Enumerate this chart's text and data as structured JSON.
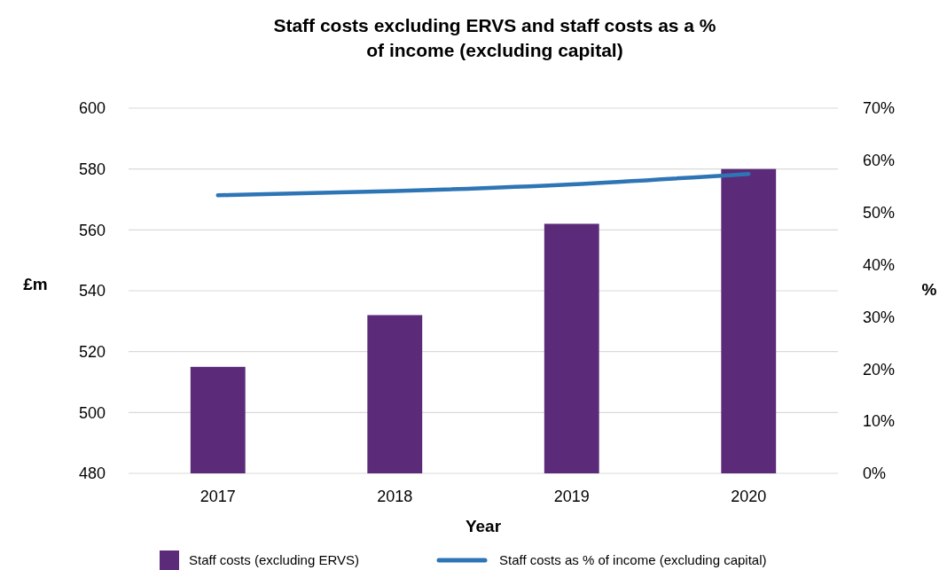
{
  "chart_data": {
    "type": "bar",
    "title": "Staff costs excluding ERVS and staff costs as a % of income (excluding capital)",
    "xlabel": "Year",
    "ylabel": "£m",
    "y2label": "%",
    "categories": [
      "2017",
      "2018",
      "2019",
      "2020"
    ],
    "series": [
      {
        "name": "Staff costs (excluding ERVS)",
        "color": "#5b2a78",
        "values": [
          515,
          532,
          562,
          580
        ]
      },
      {
        "name": "Staff costs as % of income (excluding capital)",
        "type": "line",
        "axis": "y2",
        "color": "#2e75b6",
        "values": [
          53.3,
          54.1,
          55.4,
          57.4
        ]
      }
    ],
    "ylim": [
      480,
      600
    ],
    "yticks": [
      480,
      500,
      520,
      540,
      560,
      580,
      600
    ],
    "y2lim": [
      0,
      70
    ],
    "y2ticks": [
      {
        "value": 0,
        "label": "0%"
      },
      {
        "value": 10,
        "label": "10%"
      },
      {
        "value": 20,
        "label": "20%"
      },
      {
        "value": 30,
        "label": "30%"
      },
      {
        "value": 40,
        "label": "40%"
      },
      {
        "value": 50,
        "label": "50%"
      },
      {
        "value": 60,
        "label": "60%"
      },
      {
        "value": 70,
        "label": "70%"
      }
    ],
    "grid": "y",
    "legend": "bottom",
    "marker": "none",
    "line_style": "solid"
  }
}
